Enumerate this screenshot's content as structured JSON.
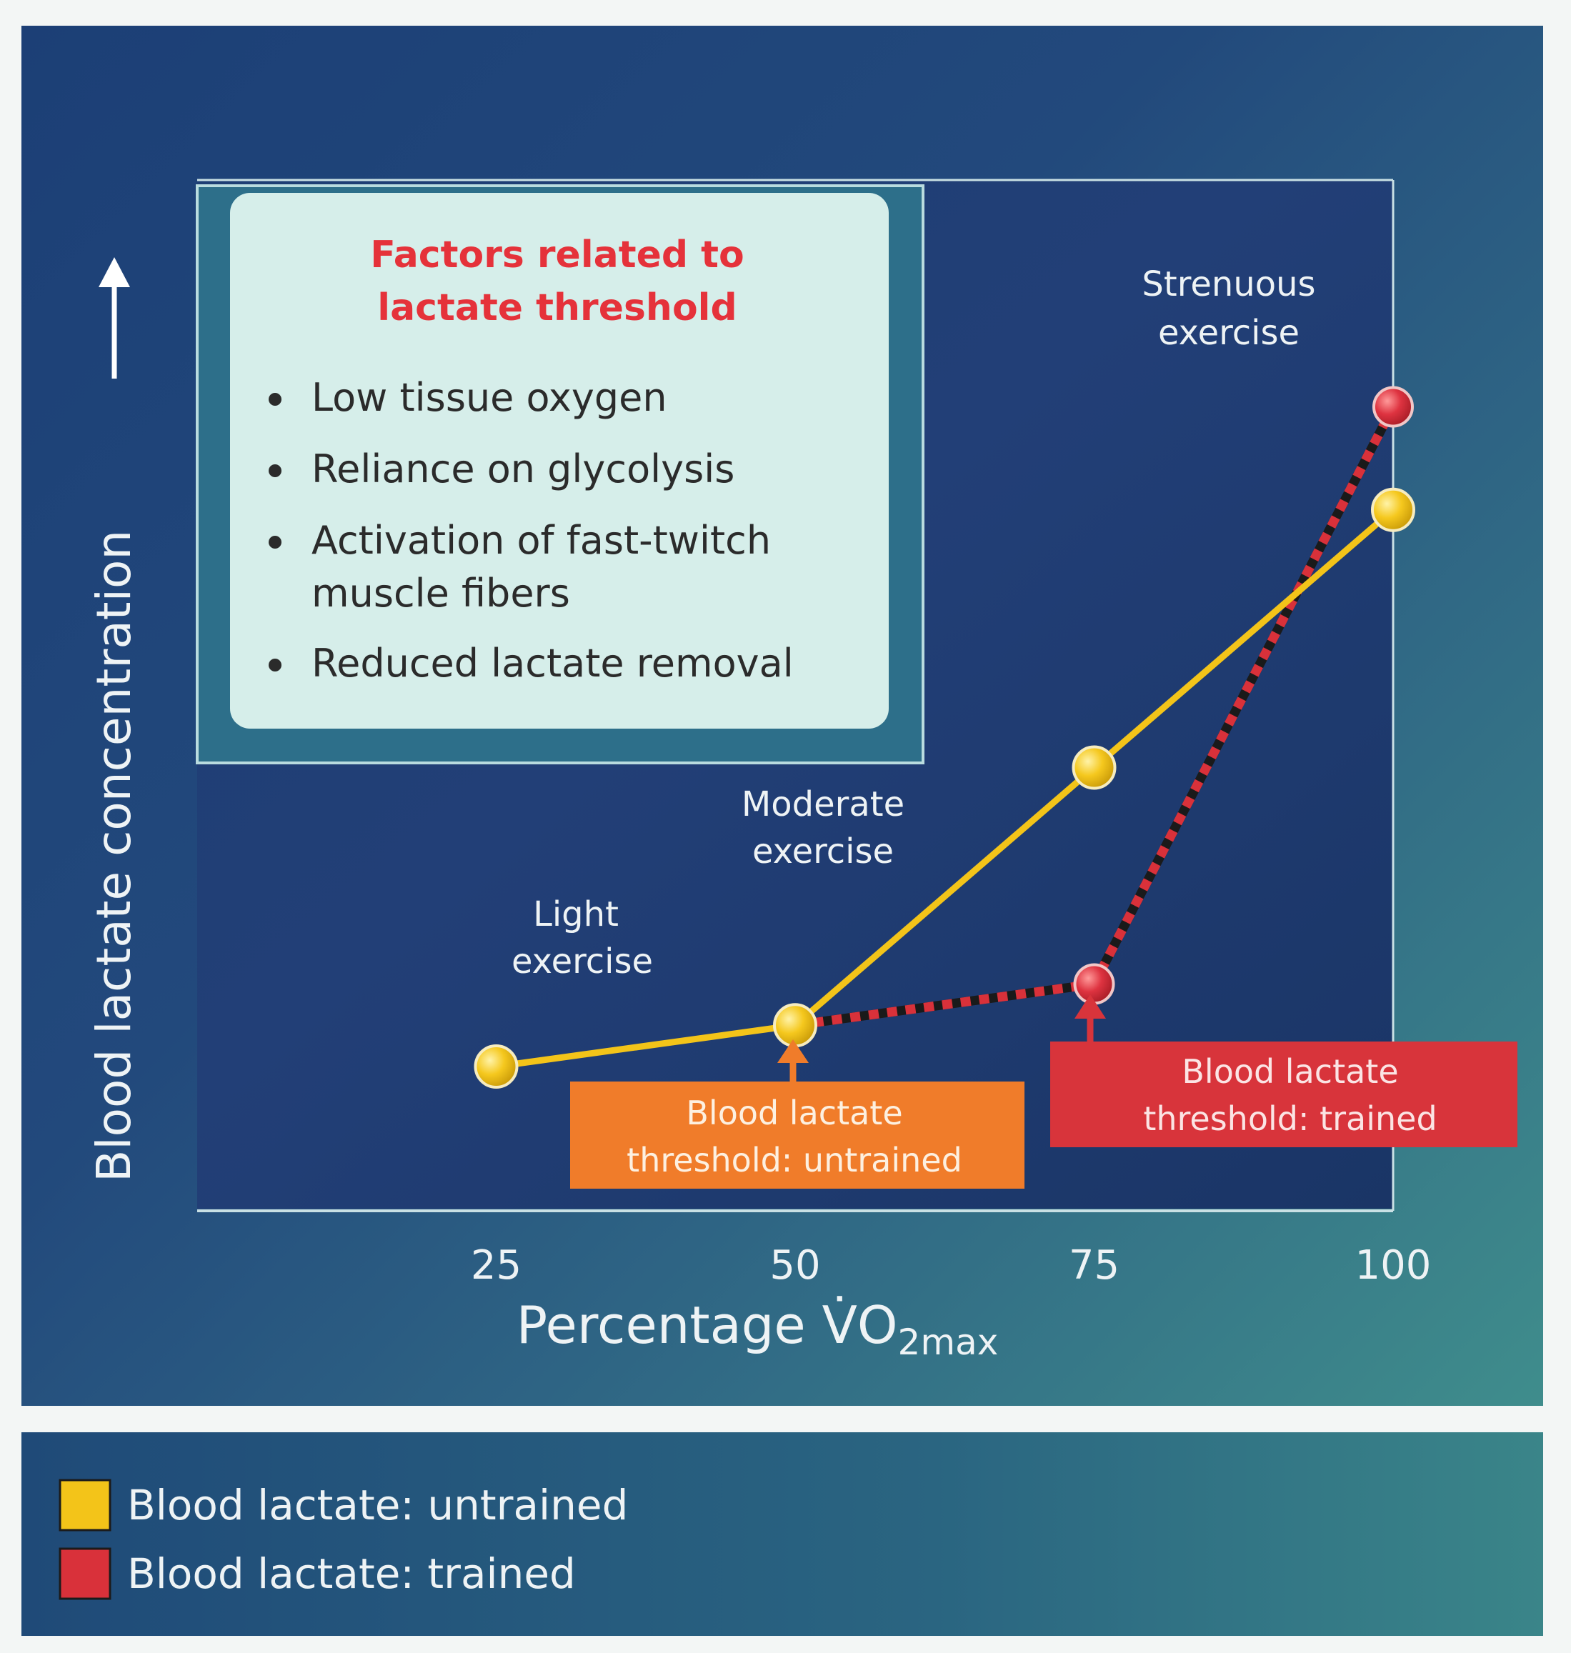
{
  "chart_data": {
    "type": "line",
    "title": "",
    "xlabel": "Percentage V̇O",
    "xlabel_sub": "2max",
    "ylabel": "Blood lactate concentration",
    "x_ticks": [
      "25",
      "50",
      "75",
      "100"
    ],
    "xlim": [
      0,
      100
    ],
    "ylim": [
      0,
      10
    ],
    "grid": false,
    "legend_position": "bottom",
    "series": [
      {
        "name": "Blood lactate: untrained",
        "color": "#f3c419",
        "style": "solid",
        "x": [
          25,
          50,
          75,
          100
        ],
        "y": [
          1.4,
          1.8,
          4.3,
          6.8
        ]
      },
      {
        "name": "Blood lactate: trained",
        "color": "#d9313a",
        "style": "dashed",
        "x": [
          50,
          75,
          100
        ],
        "y": [
          1.8,
          2.2,
          7.8
        ]
      }
    ],
    "annotations": {
      "light": [
        "Light",
        "exercise"
      ],
      "moderate": [
        "Moderate",
        "exercise"
      ],
      "strenuous": [
        "Strenuous",
        "exercise"
      ],
      "threshold_untrained": [
        "Blood lactate",
        "threshold: untrained"
      ],
      "threshold_trained": [
        "Blood lactate",
        "threshold: trained"
      ]
    },
    "colors": {
      "untrained_box": "#f07c2a",
      "trained_box": "#d8343b",
      "heading": "#e5323a"
    }
  },
  "factors_box": {
    "heading": [
      "Factors related to",
      "lactate threshold"
    ],
    "items": [
      [
        "Low tissue oxygen"
      ],
      [
        "Reliance on glycolysis"
      ],
      [
        "Activation of fast-twitch",
        "muscle fibers"
      ],
      [
        "Reduced lactate removal"
      ]
    ]
  }
}
